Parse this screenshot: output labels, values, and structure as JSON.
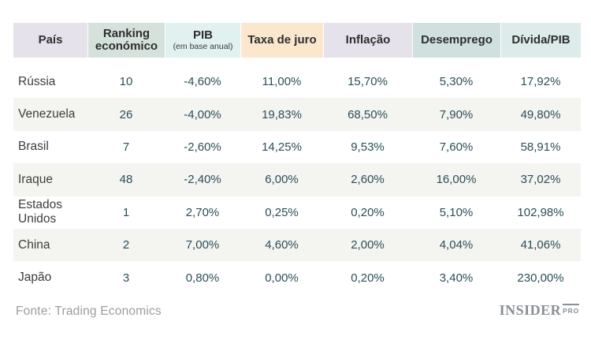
{
  "chart_data": {
    "type": "table",
    "title": "",
    "columns": [
      {
        "label": "País"
      },
      {
        "label": "Ranking económico"
      },
      {
        "label": "PIB",
        "sub": "(em base anual)"
      },
      {
        "label": "Taxa de juro"
      },
      {
        "label": "Inflação"
      },
      {
        "label": "Desemprego"
      },
      {
        "label": "Dívida/PIB"
      }
    ],
    "rows": [
      [
        "Rússia",
        "10",
        "-4,60%",
        "11,00%",
        "15,70%",
        "5,30%",
        "17,92%"
      ],
      [
        "Venezuela",
        "26",
        "-4,00%",
        "19,83%",
        "68,50%",
        "7,90%",
        "49,80%"
      ],
      [
        "Brasil",
        "7",
        "-2,60%",
        "14,25%",
        "9,53%",
        "7,60%",
        "58,91%"
      ],
      [
        "Iraque",
        "48",
        "-2,40%",
        "6,00%",
        "2,60%",
        "16,00%",
        "37,02%"
      ],
      [
        "Estados Unidos",
        "1",
        "2,70%",
        "0,25%",
        "0,20%",
        "5,10%",
        "102,98%"
      ],
      [
        "China",
        "2",
        "7,00%",
        "4,60%",
        "2,00%",
        "4,04%",
        "41,06%"
      ],
      [
        "Japão",
        "3",
        "0,80%",
        "0,00%",
        "0,20%",
        "3,40%",
        "230,00%"
      ]
    ],
    "source": "Fonte: Trading Economics"
  },
  "colors": {
    "header_pais": "#e6e2eb",
    "header_ranking": "#d5e2dc",
    "header_pib": "#e1f1f0",
    "header_taxa": "#fbe7ce",
    "header_inflacao": "#e6e2eb",
    "header_desemprego": "#d0e0de",
    "header_divida": "#ddecea",
    "row_alt": "#f4f4f1",
    "value_text": "#2b4f57"
  },
  "footer": {
    "logo_main": "INSIDER",
    "logo_pro": "PRO"
  }
}
